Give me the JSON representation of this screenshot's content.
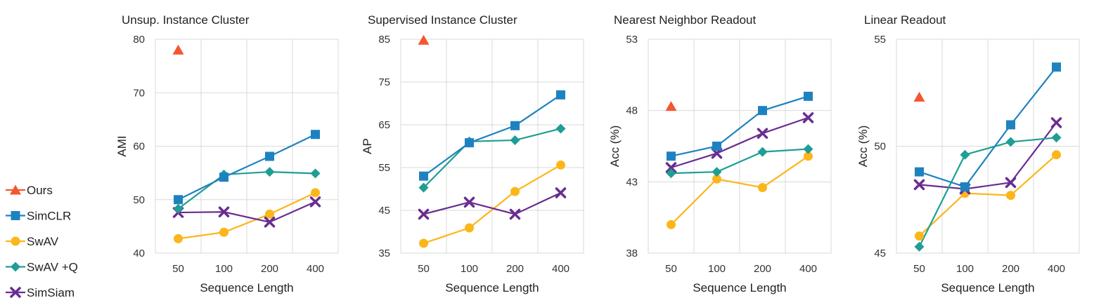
{
  "legend": [
    {
      "name": "Ours",
      "color": "#F4562F",
      "marker": "triangle"
    },
    {
      "name": "SimCLR",
      "color": "#1F82C0",
      "marker": "square"
    },
    {
      "name": "SwAV",
      "color": "#FBB61A",
      "marker": "circle"
    },
    {
      "name": "SwAV +Q",
      "color": "#1E9E95",
      "marker": "diamond"
    },
    {
      "name": "SimSiam",
      "color": "#6A2D91",
      "marker": "x"
    }
  ],
  "chart_data": [
    {
      "type": "line",
      "title": "Unsup. Instance Cluster",
      "xlabel": "Sequence Length",
      "ylabel": "AMI",
      "categories": [
        "50",
        "100",
        "200",
        "400"
      ],
      "ylim": [
        40,
        80
      ],
      "yticks": [
        40,
        50,
        60,
        70,
        80
      ],
      "series": [
        {
          "name": "Ours",
          "values": [
            78,
            null,
            null,
            null
          ]
        },
        {
          "name": "SimCLR",
          "values": [
            50.0,
            54.2,
            58.1,
            62.2
          ]
        },
        {
          "name": "SwAV",
          "values": [
            42.7,
            43.9,
            47.3,
            51.3
          ]
        },
        {
          "name": "SwAV +Q",
          "values": [
            48.3,
            54.7,
            55.2,
            54.9
          ]
        },
        {
          "name": "SimSiam",
          "values": [
            47.6,
            47.7,
            45.8,
            49.6
          ]
        }
      ]
    },
    {
      "type": "line",
      "title": "Supervised Instance Cluster",
      "xlabel": "Sequence Length",
      "ylabel": "AP",
      "categories": [
        "50",
        "100",
        "200",
        "400"
      ],
      "ylim": [
        35,
        85
      ],
      "yticks": [
        35,
        45,
        55,
        65,
        75,
        85
      ],
      "series": [
        {
          "name": "Ours",
          "values": [
            84.8,
            null,
            null,
            null
          ]
        },
        {
          "name": "SimCLR",
          "values": [
            53.0,
            60.8,
            64.8,
            72.0
          ]
        },
        {
          "name": "SwAV",
          "values": [
            37.3,
            40.9,
            49.4,
            55.6
          ]
        },
        {
          "name": "SwAV +Q",
          "values": [
            50.3,
            61.1,
            61.4,
            64.1
          ]
        },
        {
          "name": "SimSiam",
          "values": [
            44.1,
            46.9,
            44.1,
            49.1
          ]
        }
      ]
    },
    {
      "type": "line",
      "title": "Nearest Neighbor Readout",
      "xlabel": "Sequence Length",
      "ylabel": "Acc (%)",
      "categories": [
        "50",
        "100",
        "200",
        "400"
      ],
      "ylim": [
        38,
        53
      ],
      "yticks": [
        38,
        43,
        48,
        53
      ],
      "series": [
        {
          "name": "Ours",
          "values": [
            48.3,
            null,
            null,
            null
          ]
        },
        {
          "name": "SimCLR",
          "values": [
            44.8,
            45.5,
            48.0,
            49.0
          ]
        },
        {
          "name": "SwAV",
          "values": [
            40.0,
            43.2,
            42.6,
            44.8
          ]
        },
        {
          "name": "SwAV +Q",
          "values": [
            43.6,
            43.7,
            45.1,
            45.3
          ]
        },
        {
          "name": "SimSiam",
          "values": [
            44.0,
            45.0,
            46.4,
            47.5
          ]
        }
      ]
    },
    {
      "type": "line",
      "title": "Linear Readout",
      "xlabel": "Sequence Length",
      "ylabel": "Acc (%)",
      "categories": [
        "50",
        "100",
        "200",
        "400"
      ],
      "ylim": [
        45,
        55
      ],
      "yticks": [
        45,
        50,
        55
      ],
      "series": [
        {
          "name": "Ours",
          "values": [
            52.3,
            null,
            null,
            null
          ]
        },
        {
          "name": "SimCLR",
          "values": [
            48.8,
            48.1,
            51.0,
            53.7
          ]
        },
        {
          "name": "SwAV",
          "values": [
            45.8,
            47.8,
            47.7,
            49.6
          ]
        },
        {
          "name": "SwAV +Q",
          "values": [
            45.3,
            49.6,
            50.2,
            50.4
          ]
        },
        {
          "name": "SimSiam",
          "values": [
            48.2,
            48.0,
            48.3,
            51.1
          ]
        }
      ]
    }
  ]
}
